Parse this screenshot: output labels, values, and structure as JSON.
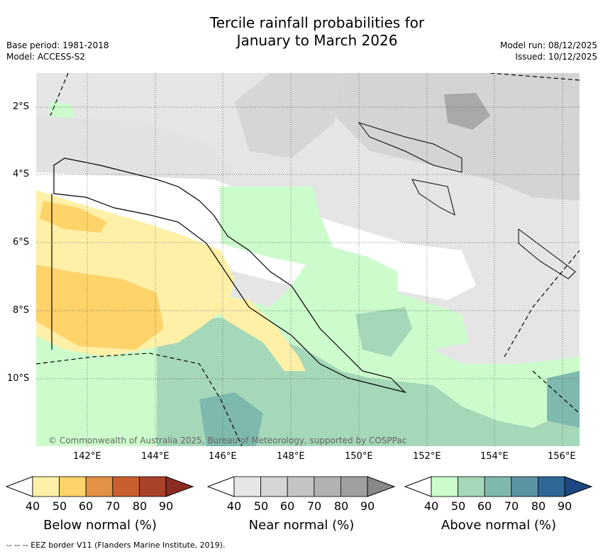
{
  "title": {
    "line1": "Tercile rainfall probabilities for",
    "line2": "January to March 2026"
  },
  "meta": {
    "base_period": "Base period: 1981-2018",
    "model": "Model: ACCESS-S2",
    "model_run": "Model run: 08/12/2025",
    "issued": "Issued: 10/12/2025"
  },
  "map": {
    "lat_labels": [
      "2°S",
      "4°S",
      "6°S",
      "8°S",
      "10°S"
    ],
    "lon_labels": [
      "142°E",
      "144°E",
      "146°E",
      "148°E",
      "150°E",
      "152°E",
      "154°E",
      "156°E"
    ],
    "copyright": "© Commonwealth of Australia 2025, Bureau of Meteorology, supported by COSPPac"
  },
  "legends": [
    {
      "title": "Below normal (%)",
      "ticks": [
        "40",
        "50",
        "60",
        "70",
        "80",
        "90"
      ],
      "colors": [
        "#fff0a8",
        "#fdd36a",
        "#e29245",
        "#c95f2e",
        "#a8422a",
        "#8a2c22"
      ]
    },
    {
      "title": "Near normal (%)",
      "ticks": [
        "40",
        "50",
        "60",
        "70",
        "80",
        "90"
      ],
      "colors": [
        "#e6e6e6",
        "#d5d5d5",
        "#c4c4c4",
        "#b2b2b2",
        "#a0a0a0",
        "#888888"
      ]
    },
    {
      "title": "Above normal (%)",
      "ticks": [
        "40",
        "50",
        "60",
        "70",
        "80",
        "90"
      ],
      "colors": [
        "#ccfccc",
        "#a4d8b8",
        "#7fb9ad",
        "#5c93a3",
        "#2f6796",
        "#1b4880"
      ]
    }
  ],
  "footer": "--  --  -- EEZ border V11 (Flanders Marine Institute, 2019)."
}
